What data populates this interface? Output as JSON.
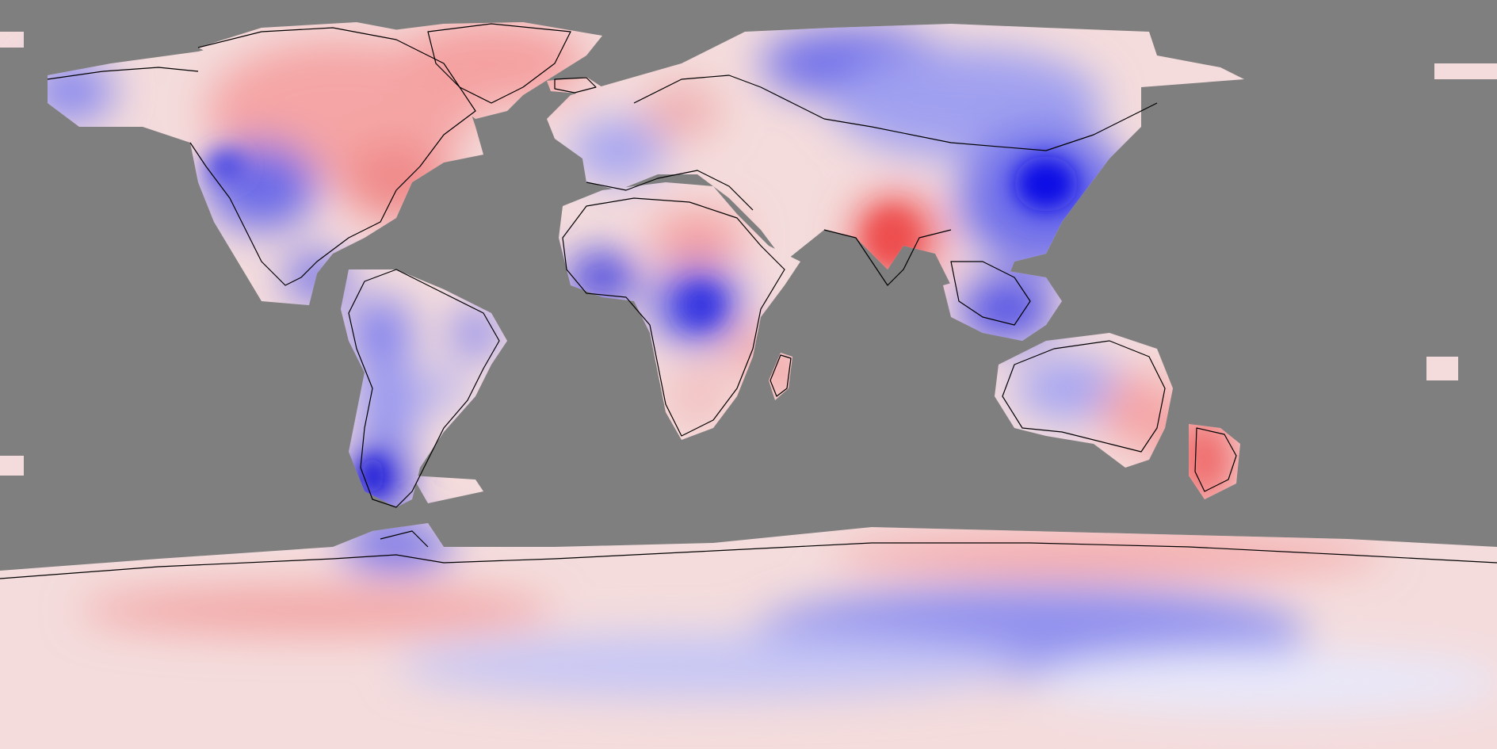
{
  "map": {
    "projection": "equirectangular",
    "ocean_color": "#7f7f7f",
    "coastline_color": "#000000",
    "colormap": {
      "name": "blue-white-red",
      "low": "#0000e6",
      "mid": "#ffffff",
      "high": "#f04b4b"
    },
    "labels": [],
    "value_legend": null
  }
}
